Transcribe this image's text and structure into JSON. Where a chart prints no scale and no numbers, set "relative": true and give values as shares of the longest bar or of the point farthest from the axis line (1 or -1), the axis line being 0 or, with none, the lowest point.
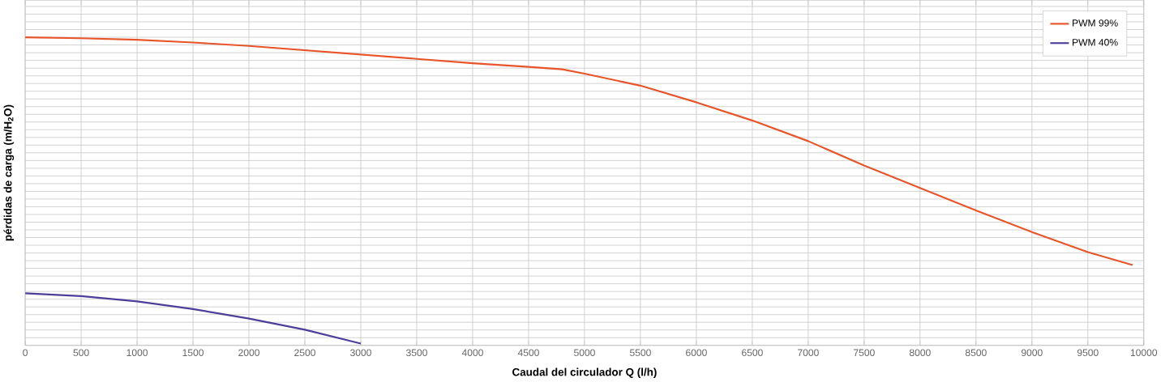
{
  "chart_data": {
    "type": "line",
    "relative": true,
    "xlabel": "Caudal del circulador Q (l/h)",
    "ylabel": "pérdidas de carga (m/H$_{2}$O)",
    "xlim": [
      0,
      10000
    ],
    "xticks": [
      0,
      500,
      1000,
      1500,
      2000,
      2500,
      3000,
      3500,
      4000,
      4500,
      5000,
      5500,
      6000,
      6500,
      7000,
      7500,
      8000,
      8500,
      9000,
      9500,
      10000
    ],
    "grid": true,
    "legend": "top right",
    "marker": "none",
    "line_style": "solid",
    "series": [
      {
        "name": "PWM 99%",
        "color": "#e8552a",
        "x": [
          0,
          500,
          1000,
          1500,
          2000,
          2500,
          3000,
          3500,
          4000,
          4500,
          4800,
          5000,
          5500,
          6000,
          6500,
          7000,
          7500,
          8000,
          8500,
          9000,
          9500,
          9900
        ],
        "values": [
          1.0,
          0.997,
          0.992,
          0.983,
          0.972,
          0.958,
          0.944,
          0.93,
          0.916,
          0.904,
          0.896,
          0.882,
          0.843,
          0.789,
          0.73,
          0.663,
          0.584,
          0.511,
          0.438,
          0.368,
          0.303,
          0.261
        ]
      },
      {
        "name": "PWM 40%",
        "color": "#4b3f9a",
        "x": [
          0,
          500,
          1000,
          1500,
          2000,
          2500,
          3000
        ],
        "values": [
          0.169,
          0.16,
          0.143,
          0.118,
          0.087,
          0.051,
          0.006
        ]
      }
    ]
  }
}
